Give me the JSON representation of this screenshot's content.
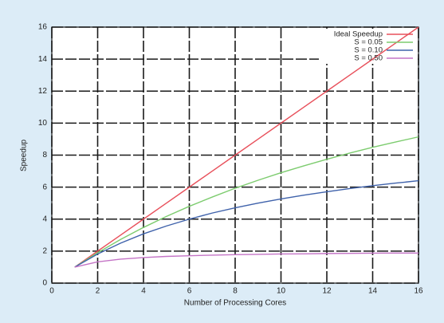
{
  "chart_data": {
    "type": "line",
    "x_label": "Number of Processing Cores",
    "y_label": "Speedup",
    "x": [
      1,
      2,
      3,
      4,
      5,
      6,
      7,
      8,
      9,
      10,
      11,
      12,
      13,
      14,
      15,
      16
    ],
    "series": [
      {
        "name": "Ideal Speedup",
        "color": "#e8505b",
        "values": [
          1,
          2,
          3,
          4,
          5,
          6,
          7,
          8,
          9,
          10,
          11,
          12,
          13,
          14,
          15,
          16
        ]
      },
      {
        "name": "S = 0.05",
        "color": "#7dcc6f",
        "values": [
          1,
          1.9,
          2.73,
          3.48,
          4.17,
          4.8,
          5.38,
          5.93,
          6.43,
          6.9,
          7.33,
          7.74,
          8.13,
          8.49,
          8.82,
          9.14
        ]
      },
      {
        "name": "S = 0.10",
        "color": "#3f62ab",
        "values": [
          1,
          1.82,
          2.5,
          3.08,
          3.57,
          4,
          4.38,
          4.71,
          5,
          5.26,
          5.5,
          5.71,
          5.91,
          6.09,
          6.25,
          6.4
        ]
      },
      {
        "name": "S = 0.50",
        "color": "#c474c6",
        "values": [
          1,
          1.33,
          1.5,
          1.6,
          1.67,
          1.71,
          1.75,
          1.78,
          1.8,
          1.82,
          1.83,
          1.85,
          1.86,
          1.87,
          1.88,
          1.88
        ]
      }
    ],
    "xlim": [
      0,
      16
    ],
    "ylim": [
      0,
      16
    ],
    "xticks": [
      0,
      2,
      4,
      6,
      8,
      10,
      12,
      14,
      16
    ],
    "yticks": [
      0,
      2,
      4,
      6,
      8,
      10,
      12,
      14,
      16
    ],
    "grid": true,
    "legend": "top-right"
  }
}
